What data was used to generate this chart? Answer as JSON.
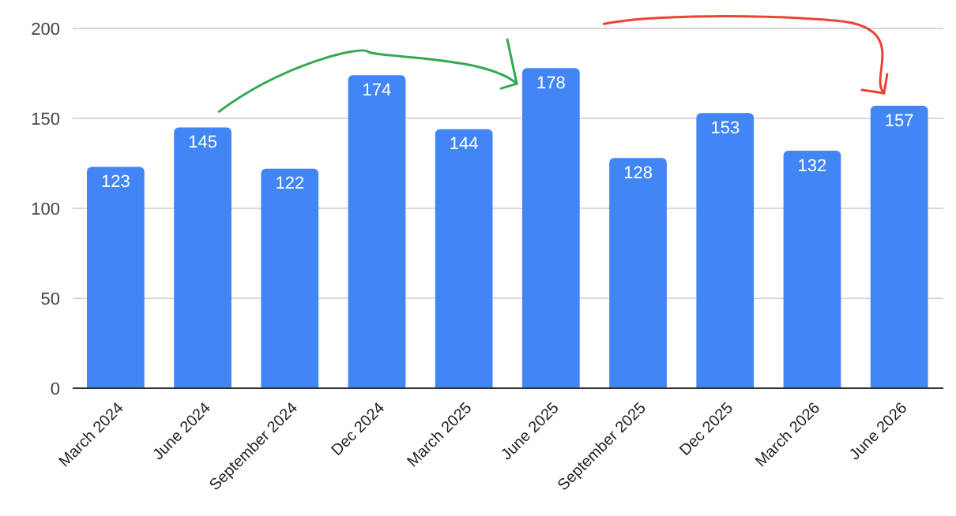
{
  "chart_data": {
    "type": "bar",
    "categories": [
      "March 2024",
      "June 2024",
      "September 2024",
      "Dec 2024",
      "March 2025",
      "June 2025",
      "September 2025",
      "Dec 2025",
      "March 2026",
      "June 2026"
    ],
    "values": [
      123,
      145,
      122,
      174,
      144,
      178,
      128,
      153,
      132,
      157
    ],
    "color": "#4285f4",
    "ylim": [
      0,
      200
    ],
    "yticks": [
      0,
      50,
      100,
      150,
      200
    ],
    "grid": "y",
    "data_labels": true
  }
}
